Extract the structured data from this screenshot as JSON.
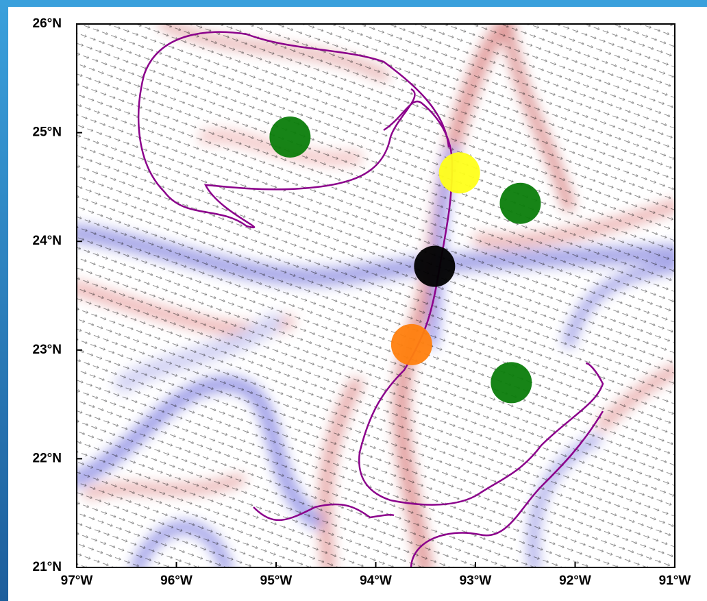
{
  "map": {
    "xlim": [
      -97,
      -91
    ],
    "ylim": [
      21,
      26
    ],
    "xticks": [
      {
        "value": -97,
        "label": "97°W"
      },
      {
        "value": -96,
        "label": "96°W"
      },
      {
        "value": -95,
        "label": "95°W"
      },
      {
        "value": -94,
        "label": "94°W"
      },
      {
        "value": -93,
        "label": "93°W"
      },
      {
        "value": -92,
        "label": "92°W"
      },
      {
        "value": -91,
        "label": "91°W"
      }
    ],
    "yticks": [
      {
        "value": 21,
        "label": "21°N"
      },
      {
        "value": 22,
        "label": "22°N"
      },
      {
        "value": 23,
        "label": "23°N"
      },
      {
        "value": 24,
        "label": "24°N"
      },
      {
        "value": 25,
        "label": "25°N"
      },
      {
        "value": 26,
        "label": "26°N"
      }
    ],
    "markers": [
      {
        "lon": -94.86,
        "lat": 24.96,
        "color": "#0b7d0b"
      },
      {
        "lon": -92.55,
        "lat": 24.35,
        "color": "#0b7d0b"
      },
      {
        "lon": -92.64,
        "lat": 22.7,
        "color": "#0b7d0b"
      },
      {
        "lon": -93.16,
        "lat": 24.63,
        "color": "#ffff1a"
      },
      {
        "lon": -93.41,
        "lat": 23.77,
        "color": "#000000"
      },
      {
        "lon": -93.64,
        "lat": 23.05,
        "color": "#ff7f0e"
      }
    ]
  }
}
